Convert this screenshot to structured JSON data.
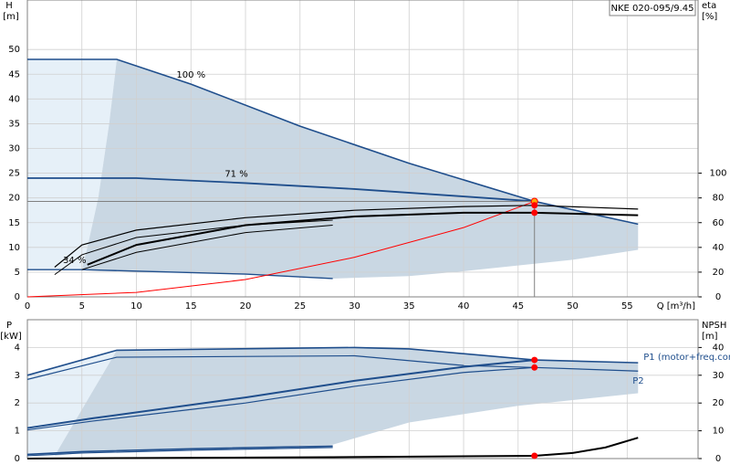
{
  "chart_data": [
    {
      "type": "line",
      "title": "NKE 020-095/9.45",
      "ylabel": "H",
      "yunit": "[m]",
      "y2label": "eta",
      "y2unit": "[%]",
      "xlabel": "Q [m³/h]",
      "xlim": [
        0,
        61.5
      ],
      "xticks": [
        0,
        5,
        10,
        15,
        20,
        25,
        30,
        35,
        40,
        45,
        50,
        55
      ],
      "ylim": [
        0,
        60
      ],
      "yticks": [
        0,
        5,
        10,
        15,
        20,
        25,
        30,
        35,
        40,
        45,
        50
      ],
      "y2lim": [
        0,
        240
      ],
      "y2ticks": [
        0,
        20,
        40,
        60,
        80,
        100
      ],
      "grid": true,
      "areas": [
        {
          "color": "#e6f0f8",
          "x": [
            0,
            8.2,
            7.5,
            6.5,
            5.5,
            5,
            0
          ],
          "values": [
            48,
            48,
            35,
            20,
            10,
            5.5,
            5.5
          ]
        },
        {
          "color": "#c9d7e3",
          "x": [
            8.2,
            15,
            25,
            35,
            46.5,
            56,
            56,
            50,
            40,
            35,
            28,
            20,
            10,
            5,
            5.5,
            6.5,
            7.5
          ],
          "values": [
            48,
            43,
            34.5,
            27,
            19.3,
            14.7,
            9.5,
            7.5,
            5.2,
            4.2,
            3.7,
            4.6,
            5.2,
            5.5,
            10,
            20,
            35
          ]
        }
      ],
      "series": [
        {
          "name": "100 %",
          "color": "#1f4e8c",
          "width": 1.6,
          "x": [
            0,
            8.2,
            15,
            25,
            35,
            46.5,
            56
          ],
          "values": [
            48,
            48,
            43,
            34.5,
            27,
            19.3,
            14.7
          ]
        },
        {
          "name": "71 %",
          "color": "#1f4e8c",
          "width": 1.8,
          "x": [
            0,
            5.5,
            10,
            20,
            30,
            40,
            46.5
          ],
          "values": [
            24,
            24,
            24,
            23,
            21.8,
            20.3,
            19.3
          ]
        },
        {
          "name": "34 %",
          "color": "#1f4e8c",
          "width": 1.4,
          "x": [
            0,
            5,
            10,
            20,
            28
          ],
          "values": [
            5.5,
            5.5,
            5.2,
            4.6,
            3.7
          ]
        },
        {
          "color": "#ff0000",
          "width": 1,
          "x": [
            0,
            10,
            20,
            30,
            40,
            46.5
          ],
          "values": [
            0,
            0.9,
            3.5,
            8,
            14,
            19.3
          ]
        },
        {
          "color": "#000000",
          "width": 2,
          "axis": "y2",
          "x": [
            5.5,
            10,
            20,
            30,
            40,
            46.5,
            56
          ],
          "values": [
            26,
            42,
            58,
            65,
            68,
            68,
            66
          ]
        },
        {
          "color": "#000000",
          "width": 1.2,
          "axis": "y2",
          "x": [
            2.5,
            5,
            10,
            20,
            30,
            40,
            46.5,
            56
          ],
          "values": [
            24,
            42,
            54,
            64,
            70,
            73,
            74,
            71
          ]
        },
        {
          "color": "#000000",
          "width": 1,
          "axis": "y2",
          "x": [
            2.5,
            5,
            10,
            20,
            28
          ],
          "values": [
            18,
            34,
            48,
            58,
            62
          ]
        },
        {
          "color": "#000000",
          "width": 1,
          "axis": "y2",
          "x": [
            5,
            10,
            20,
            28
          ],
          "values": [
            22,
            36,
            52,
            58
          ]
        },
        {
          "color": "#808080",
          "width": 1,
          "x": [
            0,
            46.5,
            46.5
          ],
          "values": [
            19.3,
            19.3,
            0
          ]
        },
        {
          "mode": "markers",
          "color": "#ffa500",
          "x": [
            46.5
          ],
          "values": [
            19.3
          ]
        },
        {
          "mode": "markers",
          "color": "#ff0000",
          "axis": "y2",
          "x": [
            46.5,
            46.5
          ],
          "values": [
            74,
            68
          ]
        }
      ]
    },
    {
      "type": "line",
      "ylabel": "P",
      "yunit": "[kW]",
      "y2label": "NPSH",
      "y2unit": "[m]",
      "xlim": [
        0,
        61.5
      ],
      "ylim": [
        0,
        5
      ],
      "yticks": [
        0,
        1,
        2,
        3,
        4
      ],
      "y2lim": [
        0,
        50
      ],
      "y2ticks": [
        0,
        10,
        20,
        30,
        40
      ],
      "grid": true,
      "areas": [
        {
          "color": "#e6f0f8",
          "x": [
            0,
            8.2,
            2.5,
            0
          ],
          "values": [
            3,
            3.9,
            0.1,
            0.1
          ]
        },
        {
          "color": "#c9d7e3",
          "x": [
            2.5,
            8.2,
            15,
            30,
            35,
            46.5,
            56,
            56,
            45,
            35,
            28,
            20,
            10,
            5
          ],
          "values": [
            0.1,
            3.9,
            3.95,
            4,
            3.95,
            3.55,
            3.45,
            2.35,
            1.9,
            1.3,
            0.5,
            0.4,
            0.3,
            0.2
          ]
        }
      ],
      "series": [
        {
          "name": "P1 (motor+freq.converter)",
          "color": "#1f4e8c",
          "width": 1.6,
          "x": [
            0,
            8.2,
            30,
            35,
            46.5,
            56
          ],
          "values": [
            3,
            3.9,
            4,
            3.95,
            3.55,
            3.45
          ]
        },
        {
          "name": "P2",
          "color": "#1f4e8c",
          "width": 1.2,
          "x": [
            0,
            8.2,
            30,
            40,
            46.5,
            56
          ],
          "values": [
            2.85,
            3.65,
            3.7,
            3.35,
            3.28,
            3.15
          ]
        },
        {
          "color": "#1f4e8c",
          "width": 2,
          "x": [
            0,
            6,
            20,
            30,
            40,
            46.5
          ],
          "values": [
            1.1,
            1.45,
            2.2,
            2.8,
            3.3,
            3.55
          ]
        },
        {
          "color": "#1f4e8c",
          "width": 1.2,
          "x": [
            0,
            6,
            20,
            30,
            40,
            46.5
          ],
          "values": [
            1.03,
            1.35,
            2.0,
            2.6,
            3.1,
            3.28
          ]
        },
        {
          "color": "#1f4e8c",
          "width": 1.6,
          "x": [
            0,
            5,
            15,
            28
          ],
          "values": [
            0.15,
            0.25,
            0.35,
            0.45
          ]
        },
        {
          "color": "#1f4e8c",
          "width": 1.2,
          "x": [
            0,
            5,
            15,
            28
          ],
          "values": [
            0.1,
            0.2,
            0.3,
            0.4
          ]
        },
        {
          "color": "#000000",
          "width": 2,
          "axis": "y2",
          "x": [
            0,
            28,
            46.5,
            50,
            53,
            56
          ],
          "values": [
            0,
            0.5,
            1,
            2,
            4,
            7.5
          ]
        },
        {
          "mode": "markers",
          "color": "#ff0000",
          "x": [
            46.5,
            46.5
          ],
          "values": [
            3.55,
            3.28
          ]
        },
        {
          "mode": "markers",
          "color": "#ff0000",
          "axis": "y2",
          "x": [
            46.5
          ],
          "values": [
            1
          ]
        }
      ]
    }
  ]
}
